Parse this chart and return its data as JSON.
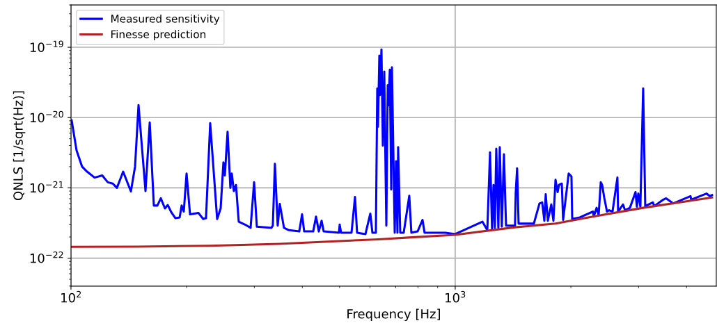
{
  "chart_data": {
    "type": "line",
    "xlabel": "Frequency [Hz]",
    "ylabel": "QNLS [1/sqrt(Hz)]",
    "log": "xy",
    "grid": true,
    "legend": "top left",
    "line_style": "solid",
    "marker": "none",
    "xlim": [
      100,
      4780
    ],
    "xticks": [
      {
        "value": 100,
        "label": "10$^{2}$"
      },
      {
        "value": 1000,
        "label": "10$^{3}$"
      }
    ],
    "ylim": [
      4e-23,
      4e-19
    ],
    "yticks": [
      {
        "value": 1e-22,
        "label": "10$^{−22}$"
      },
      {
        "value": 1e-21,
        "label": "10$^{−21}$"
      },
      {
        "value": 1e-20,
        "label": "10$^{−20}$"
      },
      {
        "value": 1e-19,
        "label": "10$^{−19}$"
      }
    ],
    "series": [
      {
        "name": "Measured sensitivity",
        "color": "#0000ff",
        "x": [
          100.4,
          103.4,
          106.9,
          110.1,
          115.2,
          120.6,
          124.7,
          128.5,
          131.7,
          136.7,
          143.2,
          146.8,
          149.9,
          156.3,
          160.3,
          164.3,
          167.8,
          171.3,
          175.6,
          178.6,
          182.4,
          187.0,
          191.8,
          194.1,
          196.6,
          199.9,
          204.1,
          214.6,
          220.9,
          224.6,
          230.3,
          240.1,
          245.2,
          249.3,
          251.4,
          255.6,
          259.9,
          262.1,
          265.4,
          268.8,
          273.3,
          283.8,
          293.4,
          299.6,
          304.6,
          332.4,
          335.2,
          339.4,
          345.1,
          349.5,
          358.4,
          369.0,
          392.8,
          399.4,
          404.5,
          427.0,
          434.3,
          441.6,
          449.0,
          454.7,
          498.3,
          500.4,
          504.6,
          537.2,
          548.5,
          555.4,
          584.0,
          601.2,
          608.8,
          621.6,
          626.8,
          629.4,
          634.7,
          637.3,
          642.7,
          648.1,
          653.6,
          661.8,
          667.4,
          670.2,
          675.8,
          681.5,
          684.3,
          695.9,
          701.5,
          707.4,
          710.3,
          719.3,
          734.4,
          759.3,
          768.9,
          798.3,
          822.0,
          832.3,
          943.2,
          1000,
          1177,
          1212,
          1232,
          1247,
          1258,
          1268,
          1279,
          1295,
          1306,
          1322,
          1339,
          1356,
          1431,
          1437,
          1449,
          1462,
          1602,
          1657,
          1684,
          1706,
          1720,
          1742,
          1778,
          1801,
          1824,
          1847,
          1862,
          1894,
          1909,
          1974,
          2007,
          2016,
          2110,
          2284,
          2294,
          2333,
          2362,
          2392,
          2412,
          2442,
          2483,
          2514,
          2567,
          2643,
          2654,
          2733,
          2767,
          2849,
          2946,
          2970,
          2995,
          3033,
          3084,
          3123,
          3268,
          3296,
          3480,
          3539,
          3690,
          4096,
          4113,
          4508,
          4603,
          4661
        ],
        "values": [
          9.1e-21,
          3.4e-21,
          2e-21,
          1.7e-21,
          1.4e-21,
          1.5e-21,
          1.2e-21,
          1.15e-21,
          1e-21,
          1.7e-21,
          8.9e-22,
          2e-21,
          1.5e-20,
          9e-22,
          8.5e-21,
          5.6e-22,
          5.6e-22,
          7.1e-22,
          5.1e-22,
          5.7e-22,
          4.5e-22,
          3.7e-22,
          3.8e-22,
          5.6e-22,
          4.6e-22,
          1.6e-21,
          4.2e-22,
          4.4e-22,
          3.6e-22,
          3.7e-22,
          8.3e-21,
          3.6e-22,
          5.1e-22,
          2.3e-21,
          1.5e-21,
          6.3e-21,
          1e-21,
          1.6e-21,
          9e-22,
          1.1e-21,
          3.3e-22,
          3e-22,
          2.7e-22,
          1.2e-21,
          2.8e-22,
          2.7e-22,
          2.9e-22,
          2.2e-21,
          2.9e-22,
          5.9e-22,
          2.7e-22,
          2.5e-22,
          2.4e-22,
          4.2e-22,
          2.4e-22,
          2.4e-22,
          3.9e-22,
          2.4e-22,
          3.4e-22,
          2.4e-22,
          2.3e-22,
          3e-22,
          2.3e-22,
          2.3e-22,
          7.4e-22,
          2.3e-22,
          2.2e-22,
          4.3e-22,
          2.3e-22,
          2.3e-22,
          2.6e-20,
          7.4e-21,
          7.6e-20,
          2.1e-20,
          9.3e-20,
          4e-21,
          4.5e-20,
          2.9e-22,
          2.9e-20,
          1.5e-20,
          4.8e-20,
          9.5e-22,
          5.2e-20,
          2.3e-22,
          2.4e-21,
          2.3e-22,
          3.8e-21,
          2.3e-22,
          2.3e-22,
          7.7e-22,
          2.3e-22,
          2.4e-22,
          3.5e-22,
          2.3e-22,
          2.3e-22,
          2.2e-22,
          3.3e-22,
          2.5e-22,
          3.2e-21,
          2.6e-22,
          1.1e-21,
          2.7e-22,
          3.6e-21,
          2.7e-22,
          3.8e-21,
          2.8e-22,
          3e-21,
          2.9e-22,
          2.9e-22,
          8.5e-22,
          1.9e-21,
          3.1e-22,
          3.1e-22,
          6e-22,
          6.2e-22,
          3.4e-22,
          8.1e-22,
          3.4e-22,
          5.8e-22,
          3.4e-22,
          1.3e-21,
          8.7e-22,
          1.1e-21,
          1.15e-21,
          3.5e-22,
          1.6e-21,
          1.45e-21,
          3.6e-22,
          3.8e-22,
          4.6e-22,
          3.9e-22,
          5.2e-22,
          4.1e-22,
          1.2e-21,
          1.1e-21,
          7.3e-22,
          4.6e-22,
          4.8e-22,
          4.6e-22,
          1.4e-21,
          4.6e-22,
          5.8e-22,
          4.8e-22,
          5.2e-22,
          8.7e-22,
          5.4e-22,
          8.3e-22,
          5.4e-22,
          2.6e-20,
          5.5e-22,
          6.2e-22,
          5.5e-22,
          6.8e-22,
          7.1e-22,
          6e-22,
          7.6e-22,
          6.8e-22,
          8.3e-22,
          7.6e-22,
          7.9e-22
        ]
      },
      {
        "name": "Finesse prediction",
        "color": "#b22222",
        "x": [
          100,
          150,
          230,
          349,
          500,
          632,
          798,
          1000,
          1431,
          1824,
          2284,
          3084,
          4661
        ],
        "values": [
          1.45e-22,
          1.46e-22,
          1.5e-22,
          1.6e-22,
          1.75e-22,
          1.85e-22,
          2e-22,
          2.15e-22,
          2.75e-22,
          3.1e-22,
          3.9e-22,
          5.2e-22,
          7.3e-22
        ]
      }
    ]
  }
}
